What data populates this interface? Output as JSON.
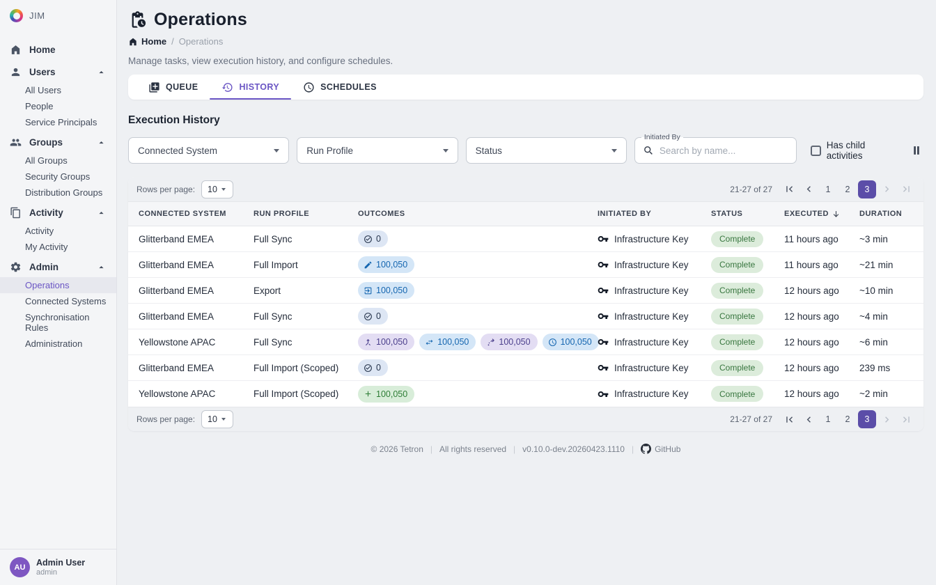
{
  "brand": {
    "name": "JIM"
  },
  "colors": {
    "accent": "#5b4da8",
    "accent_light": "#6a55c4",
    "badges": {
      "navy": {
        "bg": "#dde6f4",
        "fg": "#26344c"
      },
      "blue": {
        "bg": "#d4e6f7",
        "fg": "#1566b0"
      },
      "purple": {
        "bg": "#e3ddf3",
        "fg": "#4b3f8c"
      },
      "green": {
        "bg": "#d8edd9",
        "fg": "#2e7d36"
      }
    },
    "status_complete": {
      "bg": "#dcecdb",
      "fg": "#38763f"
    }
  },
  "sidebar": {
    "sections": [
      {
        "label": "Home",
        "icon": "home"
      },
      {
        "label": "Users",
        "icon": "person",
        "children": [
          {
            "label": "All Users"
          },
          {
            "label": "People"
          },
          {
            "label": "Service Principals"
          }
        ]
      },
      {
        "label": "Groups",
        "icon": "people-group",
        "children": [
          {
            "label": "All Groups"
          },
          {
            "label": "Security Groups"
          },
          {
            "label": "Distribution Groups"
          }
        ]
      },
      {
        "label": "Activity",
        "icon": "stacked-pages",
        "children": [
          {
            "label": "Activity"
          },
          {
            "label": "My Activity"
          }
        ]
      },
      {
        "label": "Admin",
        "icon": "gear",
        "children": [
          {
            "label": "Operations",
            "active": true
          },
          {
            "label": "Connected Systems"
          },
          {
            "label": "Synchronisation Rules"
          },
          {
            "label": "Administration"
          }
        ]
      }
    ],
    "user": {
      "initials": "AU",
      "name": "Admin User",
      "subtitle": "admin"
    }
  },
  "header": {
    "title": "Operations",
    "breadcrumb": [
      "Home",
      "Operations"
    ],
    "breadcrumb_separator": "/",
    "subtitle": "Manage tasks, view execution history, and configure schedules."
  },
  "tabs": [
    {
      "label": "QUEUE",
      "icon": "queue"
    },
    {
      "label": "HISTORY",
      "icon": "history",
      "active": true
    },
    {
      "label": "SCHEDULES",
      "icon": "clock"
    }
  ],
  "section_title": "Execution History",
  "filters": {
    "connected_system_label": "Connected System",
    "run_profile_label": "Run Profile",
    "status_label": "Status",
    "initiated_by_label": "Initiated By",
    "search_placeholder": "Search by name...",
    "has_child_label": "Has child activities"
  },
  "table": {
    "rows_per_page_label": "Rows per page:",
    "rows_per_page_value": "10",
    "pagination": {
      "range_text": "21-27 of 27",
      "pages": [
        "1",
        "2",
        "3"
      ],
      "active_page": "3",
      "first_enabled": true,
      "prev_enabled": true,
      "next_enabled": false,
      "last_enabled": false
    },
    "columns": [
      {
        "label": "CONNECTED SYSTEM"
      },
      {
        "label": "RUN PROFILE"
      },
      {
        "label": "OUTCOMES"
      },
      {
        "label": "INITIATED BY"
      },
      {
        "label": "STATUS"
      },
      {
        "label": "EXECUTED",
        "sorted": "desc"
      },
      {
        "label": "DURATION"
      }
    ],
    "rows": [
      {
        "system": "Glitterband EMEA",
        "profile": "Full Sync",
        "outcomes": [
          {
            "icon": "check-circle",
            "value": "0",
            "style": "navy"
          }
        ],
        "initiated_by": "Infrastructure Key",
        "status": "Complete",
        "executed": "11 hours ago",
        "duration": "~3 min"
      },
      {
        "system": "Glitterband EMEA",
        "profile": "Full Import",
        "outcomes": [
          {
            "icon": "pencil",
            "value": "100,050",
            "style": "blue"
          }
        ],
        "initiated_by": "Infrastructure Key",
        "status": "Complete",
        "executed": "11 hours ago",
        "duration": "~21 min"
      },
      {
        "system": "Glitterband EMEA",
        "profile": "Export",
        "outcomes": [
          {
            "icon": "export",
            "value": "100,050",
            "style": "blue"
          }
        ],
        "initiated_by": "Infrastructure Key",
        "status": "Complete",
        "executed": "12 hours ago",
        "duration": "~10 min"
      },
      {
        "system": "Glitterband EMEA",
        "profile": "Full Sync",
        "outcomes": [
          {
            "icon": "check-circle",
            "value": "0",
            "style": "navy"
          }
        ],
        "initiated_by": "Infrastructure Key",
        "status": "Complete",
        "executed": "12 hours ago",
        "duration": "~4 min"
      },
      {
        "system": "Yellowstone APAC",
        "profile": "Full Sync",
        "outcomes": [
          {
            "icon": "merge",
            "value": "100,050",
            "style": "purple"
          },
          {
            "icon": "swap",
            "value": "100,050",
            "style": "blue"
          },
          {
            "icon": "route",
            "value": "100,050",
            "style": "purple"
          },
          {
            "icon": "clock",
            "value": "100,050",
            "style": "blue"
          }
        ],
        "initiated_by": "Infrastructure Key",
        "status": "Complete",
        "executed": "12 hours ago",
        "duration": "~6 min"
      },
      {
        "system": "Glitterband EMEA",
        "profile": "Full Import (Scoped)",
        "outcomes": [
          {
            "icon": "check-circle",
            "value": "0",
            "style": "navy"
          }
        ],
        "initiated_by": "Infrastructure Key",
        "status": "Complete",
        "executed": "12 hours ago",
        "duration": "239 ms"
      },
      {
        "system": "Yellowstone APAC",
        "profile": "Full Import (Scoped)",
        "outcomes": [
          {
            "icon": "plus",
            "value": "100,050",
            "style": "green"
          }
        ],
        "initiated_by": "Infrastructure Key",
        "status": "Complete",
        "executed": "12 hours ago",
        "duration": "~2 min"
      }
    ]
  },
  "footer": {
    "copyright": "© 2026 Tetron",
    "rights": "All rights reserved",
    "version": "v0.10.0-dev.20260423.1110",
    "github_label": "GitHub"
  }
}
